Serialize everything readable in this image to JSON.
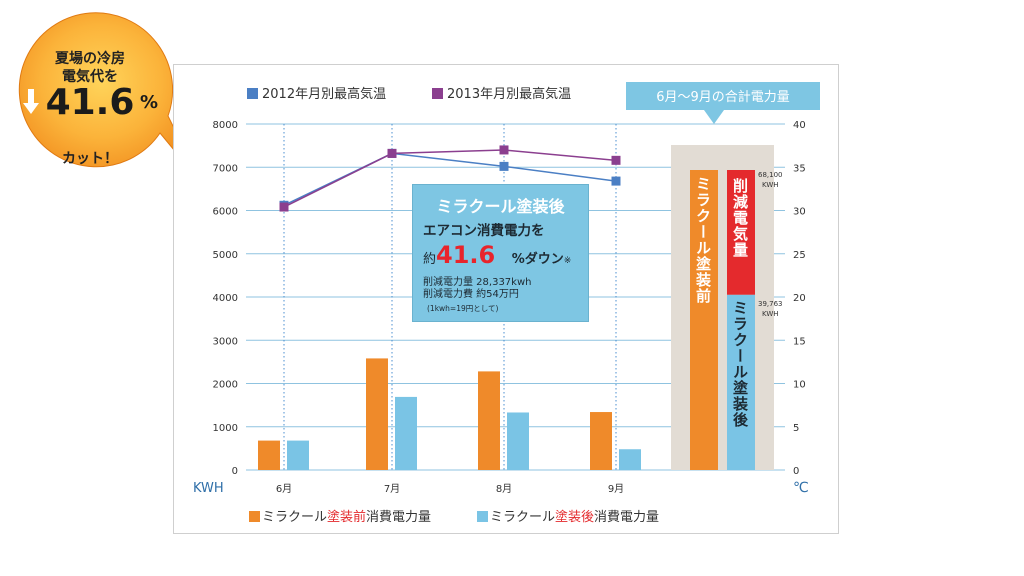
{
  "badge": {
    "line1": "夏場の冷房",
    "line2": "電気代を",
    "value": "41.6",
    "unit": "%",
    "line3": "カット！",
    "color_outer": "#f08a1c",
    "color_inner": "#ffd45a"
  },
  "summary_box": {
    "label": "6月〜9月の合計電力量",
    "before_label": "ミラクール塗装前",
    "reduced_label": "削減電気量",
    "after_label": "ミラクール塗装後",
    "total_value": "68,100",
    "total_unit": "KWH",
    "after_value": "39,763",
    "after_unit": "KWH"
  },
  "callout": {
    "title": "ミラクール塗装後",
    "line2": "エアコン消費電力を",
    "prefix": "約",
    "percent": "41.6",
    "suffix": "%ダウン",
    "mark": "※",
    "detail1": "削減電力量 28,337kwh",
    "detail2": "削減電力費 約54万円",
    "note": "(1kwh=19円として)"
  },
  "colors": {
    "before": "#ef8a2a",
    "after": "#7ac4e5",
    "temp2012": "#4b7fc4",
    "temp2013": "#8b3f8f",
    "reduced": "#e42a2d",
    "grid": "#8fc3e0",
    "axis_text": "#2f6fa8",
    "summary_bg": "#e2dcd4"
  },
  "chart_data": {
    "type": "bar",
    "categories": [
      "6月",
      "7月",
      "8月",
      "9月"
    ],
    "series": [
      {
        "name": "ミラクール塗装前消費電力量",
        "values": [
          680,
          2580,
          2280,
          1340
        ]
      },
      {
        "name": "ミラクール塗装後消費電力量",
        "values": [
          680,
          1690,
          1330,
          480
        ]
      }
    ],
    "line_series": [
      {
        "name": "2012年月別最高気温",
        "values": [
          30.6,
          36.6,
          35.1,
          33.4
        ]
      },
      {
        "name": "2013年月別最高気温",
        "values": [
          30.4,
          36.6,
          37.0,
          35.8
        ]
      }
    ],
    "summary": {
      "before_total": 68100,
      "after_total": 39763
    },
    "xlabel": "",
    "ylabel": "KWH",
    "y2label": "℃",
    "ylim": [
      0,
      8000
    ],
    "yticks": [
      0,
      1000,
      2000,
      3000,
      4000,
      5000,
      6000,
      7000,
      8000
    ],
    "y2lim": [
      0,
      40
    ],
    "y2ticks": [
      0,
      5,
      10,
      15,
      20,
      25,
      30,
      35,
      40
    ],
    "grid": true,
    "legend": [
      {
        "name": "2012年月別最高気温",
        "pos": "top"
      },
      {
        "name": "2013年月別最高気温",
        "pos": "top"
      }
    ],
    "legend_bottom": {
      "before_parts": [
        "ミラクール",
        "塗装前",
        "消費電力量"
      ],
      "after_parts": [
        "ミラクール",
        "塗装後",
        "消費電力量"
      ]
    }
  }
}
